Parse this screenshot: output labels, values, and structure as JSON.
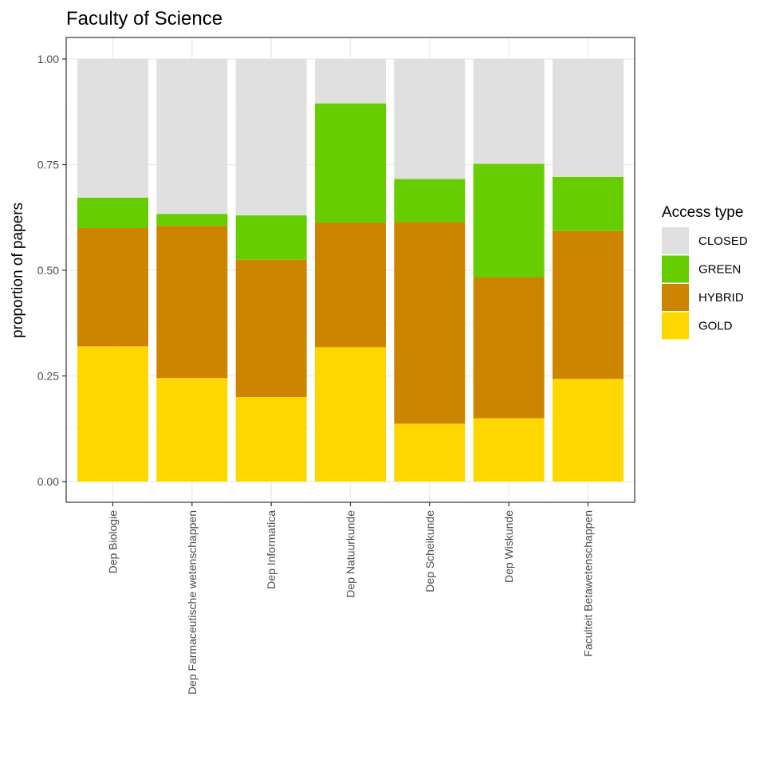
{
  "chart_data": {
    "type": "bar",
    "stacked": true,
    "title": "Faculty of Science",
    "xlabel": "",
    "ylabel": "proportion of papers",
    "ylim": [
      0,
      1
    ],
    "y_ticks": [
      "0.00",
      "0.25",
      "0.50",
      "0.75",
      "1.00"
    ],
    "grid": true,
    "legend_position": "right",
    "legend_title": "Access type",
    "categories": [
      "Dep Biologie",
      "Dep Farmaceutische wetenschappen",
      "Dep Informatica",
      "Dep Natuurkunde",
      "Dep Scheikunde",
      "Dep Wiskunde",
      "Faculteit Betawetenschappen"
    ],
    "series": [
      {
        "name": "GOLD",
        "color": "#FFD700",
        "values": [
          0.32,
          0.245,
          0.2,
          0.318,
          0.137,
          0.15,
          0.243
        ]
      },
      {
        "name": "HYBRID",
        "color": "#CD8500",
        "values": [
          0.28,
          0.36,
          0.325,
          0.295,
          0.477,
          0.333,
          0.35
        ]
      },
      {
        "name": "GREEN",
        "color": "#66CD00",
        "values": [
          0.072,
          0.028,
          0.105,
          0.282,
          0.102,
          0.269,
          0.128
        ]
      },
      {
        "name": "CLOSED",
        "color": "#E0E0E0",
        "values": [
          0.328,
          0.367,
          0.37,
          0.105,
          0.284,
          0.248,
          0.279
        ]
      }
    ],
    "legend_order": [
      "CLOSED",
      "GREEN",
      "HYBRID",
      "GOLD"
    ]
  }
}
